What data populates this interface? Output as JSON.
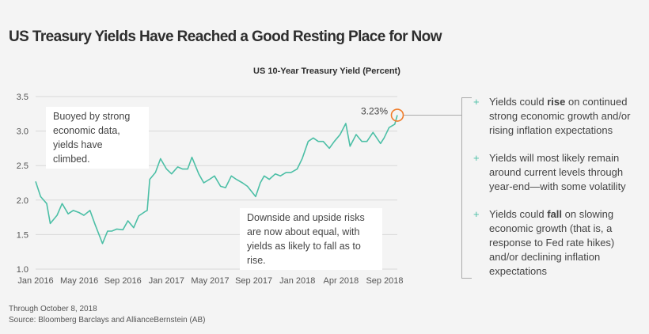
{
  "title": "US Treasury Yields Have Reached a Good Resting Place for Now",
  "chart_data": {
    "type": "line",
    "title": "US 10-Year Treasury Yield (Percent)",
    "ylim": [
      1.0,
      3.5
    ],
    "yticks": [
      "1.0",
      "1.5",
      "2.0",
      "2.5",
      "3.0",
      "3.5"
    ],
    "xticks": [
      "Jan 2016",
      "May 2016",
      "Sep 2016",
      "Jan 2017",
      "May 2017",
      "Sep 2017",
      "Jan 2018",
      "Apr 2018",
      "Sep 2018"
    ],
    "grid": true,
    "line_color": "#4cbfa6",
    "highlight_color": "#f07c2a",
    "end_label": "3.23%",
    "x": [
      "2016-01-01",
      "2016-01-15",
      "2016-02-01",
      "2016-02-11",
      "2016-03-01",
      "2016-03-15",
      "2016-04-01",
      "2016-04-15",
      "2016-05-01",
      "2016-05-15",
      "2016-06-01",
      "2016-06-15",
      "2016-07-06",
      "2016-07-20",
      "2016-08-01",
      "2016-08-15",
      "2016-09-01",
      "2016-09-15",
      "2016-10-01",
      "2016-10-15",
      "2016-11-01",
      "2016-11-08",
      "2016-11-15",
      "2016-12-01",
      "2016-12-15",
      "2017-01-01",
      "2017-01-15",
      "2017-02-01",
      "2017-02-15",
      "2017-03-01",
      "2017-03-13",
      "2017-04-01",
      "2017-04-15",
      "2017-05-01",
      "2017-05-15",
      "2017-06-01",
      "2017-06-15",
      "2017-07-01",
      "2017-07-15",
      "2017-08-01",
      "2017-08-15",
      "2017-09-07",
      "2017-09-20",
      "2017-10-01",
      "2017-10-15",
      "2017-11-01",
      "2017-11-15",
      "2017-12-01",
      "2017-12-15",
      "2018-01-01",
      "2018-01-15",
      "2018-02-01",
      "2018-02-15",
      "2018-03-01",
      "2018-03-15",
      "2018-04-01",
      "2018-04-15",
      "2018-05-01",
      "2018-05-17",
      "2018-05-29",
      "2018-06-15",
      "2018-07-01",
      "2018-07-15",
      "2018-08-01",
      "2018-08-22",
      "2018-09-01",
      "2018-09-15",
      "2018-10-01",
      "2018-10-08"
    ],
    "values": [
      2.27,
      2.05,
      1.95,
      1.66,
      1.78,
      1.95,
      1.8,
      1.85,
      1.82,
      1.78,
      1.85,
      1.65,
      1.37,
      1.55,
      1.55,
      1.58,
      1.57,
      1.7,
      1.6,
      1.77,
      1.83,
      1.85,
      2.3,
      2.4,
      2.6,
      2.45,
      2.38,
      2.48,
      2.45,
      2.45,
      2.62,
      2.38,
      2.25,
      2.3,
      2.35,
      2.2,
      2.18,
      2.35,
      2.3,
      2.25,
      2.2,
      2.05,
      2.25,
      2.35,
      2.3,
      2.38,
      2.35,
      2.4,
      2.4,
      2.45,
      2.6,
      2.85,
      2.9,
      2.85,
      2.85,
      2.75,
      2.85,
      2.95,
      3.11,
      2.78,
      2.95,
      2.85,
      2.85,
      2.98,
      2.82,
      2.9,
      3.05,
      3.1,
      3.23
    ]
  },
  "annotations": {
    "left": "Buoyed by strong economic data, yields have climbed.",
    "right": "Downside and upside risks are now about equal, with yields as likely to fall as to rise."
  },
  "panel": [
    {
      "pre": "Yields could ",
      "bold": "rise",
      "post": " on continued strong economic growth and/or rising inflation expectations"
    },
    {
      "pre": "Yields will most likely remain around current levels through year-end—with some volatility",
      "bold": "",
      "post": ""
    },
    {
      "pre": "Yields could ",
      "bold": "fall",
      "post": " on slowing economic growth (that is, a response to Fed rate hikes) and/or declining inflation expectations"
    }
  ],
  "plus_icon": "+",
  "footer": {
    "through": "Through October 8, 2018",
    "source": "Source: Bloomberg Barclays and AllianceBernstein (AB)"
  }
}
